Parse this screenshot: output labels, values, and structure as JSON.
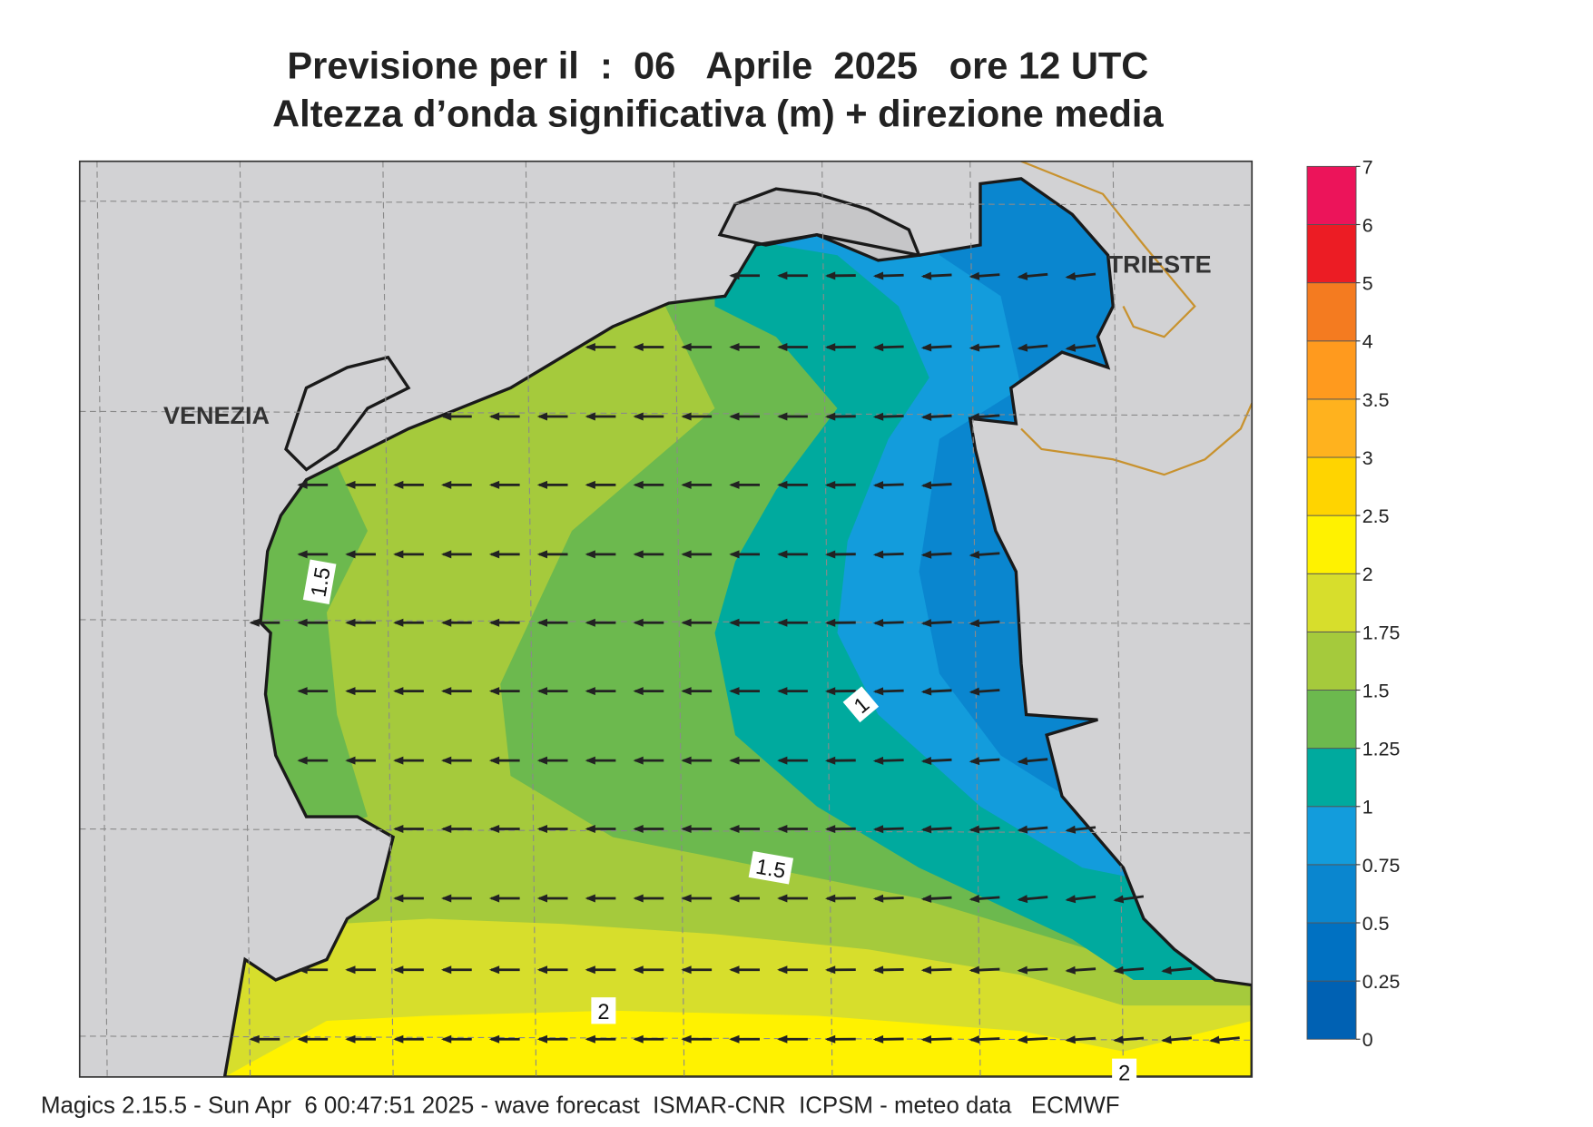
{
  "title": [
    "Previsione per il  :  06   Aprile  2025   ore 12 UTC",
    "Altezza d’onda significativa (m) + direzione media"
  ],
  "places": [
    "VENEZIA",
    "TRIESTE"
  ],
  "contour_labels": [
    "1.5",
    "1",
    "1.5",
    "2",
    "2"
  ],
  "colorbar": {
    "levels": [
      0,
      0.25,
      0.5,
      0.75,
      1,
      1.25,
      1.5,
      1.75,
      2,
      2.5,
      3,
      3.5,
      4,
      5,
      6,
      7
    ],
    "colors": [
      "#0061b3",
      "#0071c2",
      "#0a86cf",
      "#139cdc",
      "#00aa9e",
      "#6cb94e",
      "#a5ca3c",
      "#d7de2c",
      "#fff200",
      "#ffd400",
      "#ffb21e",
      "#ff9a1e",
      "#f47b20",
      "#ec1c24",
      "#ec145a"
    ]
  },
  "footer": "Magics 2.15.5 - Sun Apr  6 00:47:51 2025 - wave forecast  ISMAR-CNR  ICPSM - meteo data   ECMWF"
}
